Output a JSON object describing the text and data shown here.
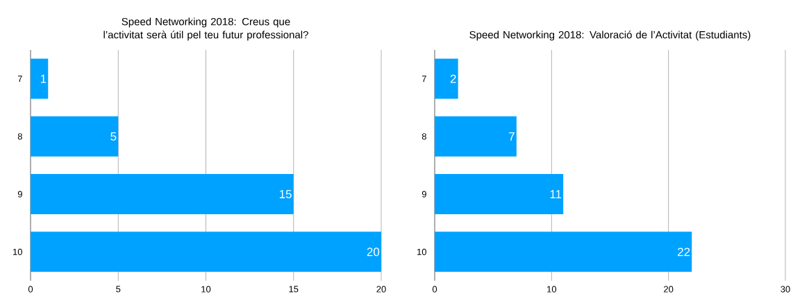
{
  "chart_data": [
    {
      "type": "bar",
      "orientation": "horizontal",
      "title": "Speed Networking 2018: Creus que l’activitat serà útil pel teu futur professional?",
      "categories": [
        "7",
        "8",
        "9",
        "10"
      ],
      "values": [
        1,
        5,
        15,
        20
      ],
      "color": "#00a2ff",
      "xlim": [
        0,
        20
      ],
      "xticks": [
        0,
        5,
        10,
        15,
        20
      ],
      "grid": "x",
      "data_labels": true
    },
    {
      "type": "bar",
      "orientation": "horizontal",
      "title": "Speed Networking 2018: Valoració de l’Activitat (Estudiants)",
      "categories": [
        "7",
        "8",
        "9",
        "10"
      ],
      "values": [
        2,
        7,
        11,
        22
      ],
      "color": "#00a2ff",
      "xlim": [
        0,
        30
      ],
      "xticks": [
        0,
        10,
        20,
        30
      ],
      "grid": "x",
      "data_labels": true
    }
  ]
}
